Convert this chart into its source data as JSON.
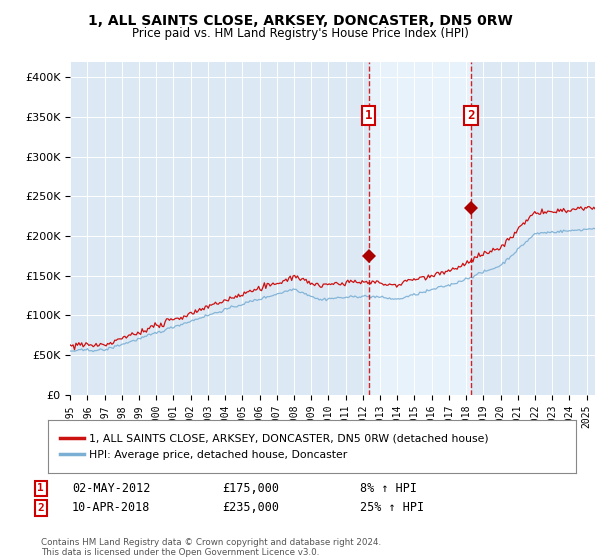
{
  "title1": "1, ALL SAINTS CLOSE, ARKSEY, DONCASTER, DN5 0RW",
  "title2": "Price paid vs. HM Land Registry's House Price Index (HPI)",
  "legend_line1": "1, ALL SAINTS CLOSE, ARKSEY, DONCASTER, DN5 0RW (detached house)",
  "legend_line2": "HPI: Average price, detached house, Doncaster",
  "annotation1": {
    "num": "1",
    "date": "02-MAY-2012",
    "price": "£175,000",
    "pct": "8% ↑ HPI",
    "x_year": 2012.33
  },
  "annotation2": {
    "num": "2",
    "date": "10-APR-2018",
    "price": "£235,000",
    "pct": "25% ↑ HPI",
    "x_year": 2018.27
  },
  "footer": "Contains HM Land Registry data © Crown copyright and database right 2024.\nThis data is licensed under the Open Government Licence v3.0.",
  "ylim": [
    0,
    420000
  ],
  "xlim_start": 1995,
  "xlim_end": 2025.5,
  "background_color": "#dce9f5",
  "shaded_color": "#e8f2fb",
  "sale1_y": 175000,
  "sale2_y": 235000
}
